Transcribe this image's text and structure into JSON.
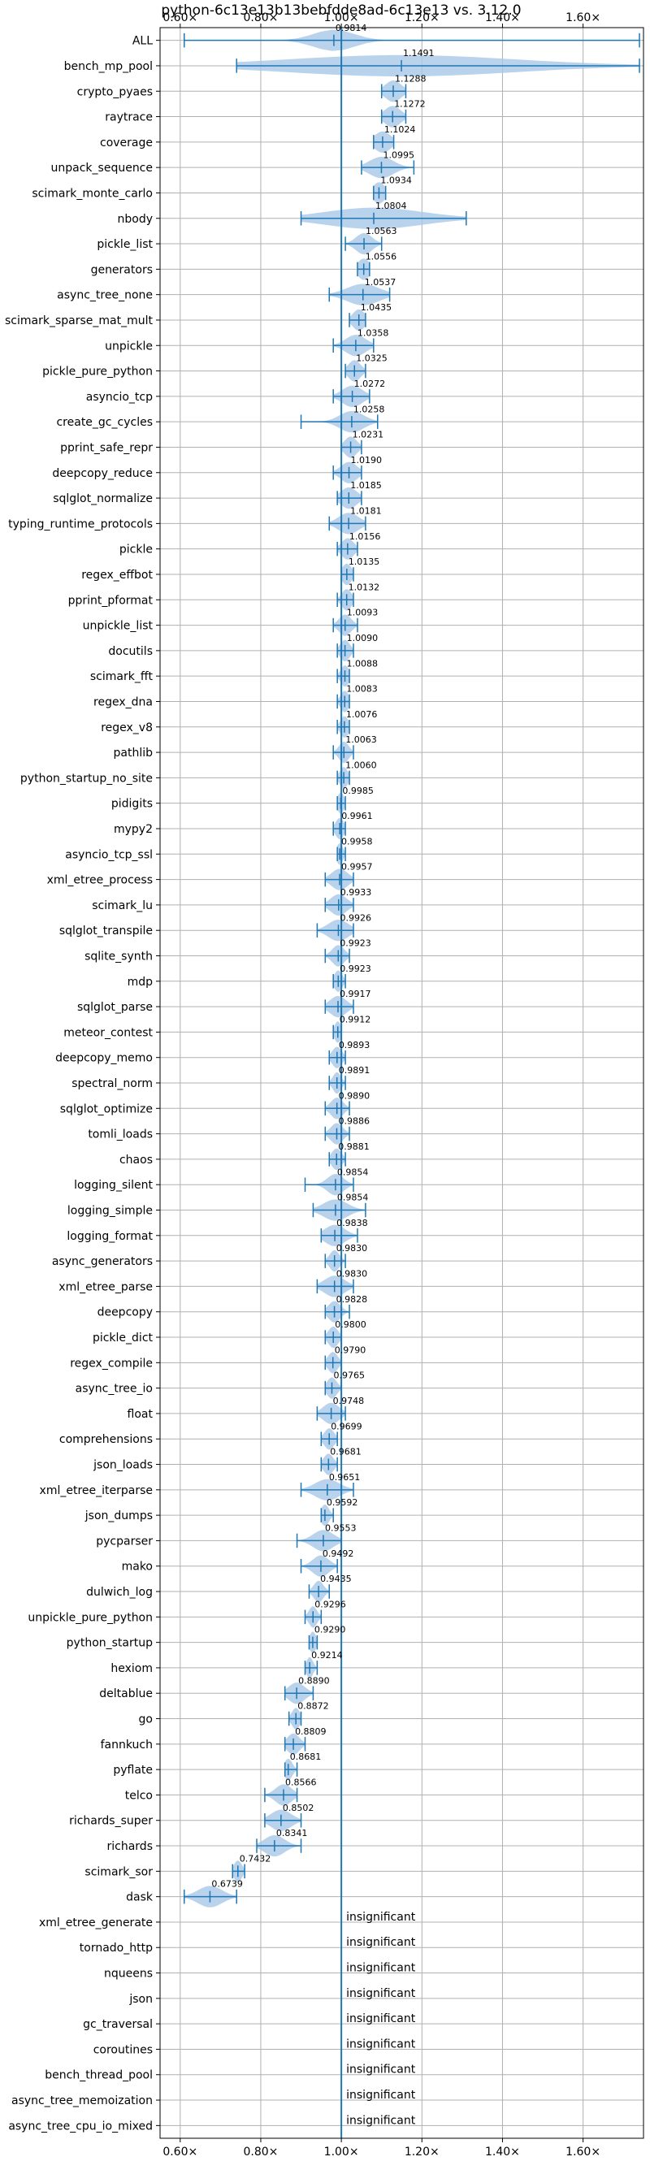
{
  "chart_data": {
    "type": "violin",
    "title": "python-6c13e13b13bebfdde8ad-6c13e13 vs. 3.12.0",
    "xlim": [
      0.55,
      1.75
    ],
    "x_ticks": [
      0.6,
      0.8,
      1.0,
      1.2,
      1.4,
      1.6
    ],
    "x_tick_labels": [
      "0.60×",
      "0.80×",
      "1.00×",
      "1.20×",
      "1.40×",
      "1.60×"
    ],
    "reference_line": 1.0,
    "grid": true,
    "colors": {
      "violin": "#a9c8e8",
      "whisker": "#1f77b4",
      "reference": "#1f77b4",
      "grid": "#b0b0b0"
    },
    "benchmarks": [
      {
        "name": "ALL",
        "value": "0.9814",
        "median": 0.9814,
        "min": 0.61,
        "max": 1.74,
        "spread": 0.05
      },
      {
        "name": "bench_mp_pool",
        "value": "1.1491",
        "median": 1.1491,
        "min": 0.74,
        "max": 1.74,
        "spread": 0.28
      },
      {
        "name": "crypto_pyaes",
        "value": "1.1288",
        "median": 1.1288,
        "min": 1.1,
        "max": 1.16,
        "spread": 0.02
      },
      {
        "name": "raytrace",
        "value": "1.1272",
        "median": 1.1272,
        "min": 1.1,
        "max": 1.16,
        "spread": 0.02
      },
      {
        "name": "coverage",
        "value": "1.1024",
        "median": 1.1024,
        "min": 1.08,
        "max": 1.13,
        "spread": 0.02
      },
      {
        "name": "unpack_sequence",
        "value": "1.0995",
        "median": 1.0995,
        "min": 1.05,
        "max": 1.18,
        "spread": 0.03
      },
      {
        "name": "scimark_monte_carlo",
        "value": "1.0934",
        "median": 1.0934,
        "min": 1.08,
        "max": 1.11,
        "spread": 0.015
      },
      {
        "name": "nbody",
        "value": "1.0804",
        "median": 1.0804,
        "min": 0.9,
        "max": 1.31,
        "spread": 0.12
      },
      {
        "name": "pickle_list",
        "value": "1.0563",
        "median": 1.0563,
        "min": 1.01,
        "max": 1.1,
        "spread": 0.02
      },
      {
        "name": "generators",
        "value": "1.0556",
        "median": 1.0556,
        "min": 1.04,
        "max": 1.07,
        "spread": 0.015
      },
      {
        "name": "async_tree_none",
        "value": "1.0537",
        "median": 1.0537,
        "min": 0.97,
        "max": 1.12,
        "spread": 0.04
      },
      {
        "name": "scimark_sparse_mat_mult",
        "value": "1.0435",
        "median": 1.0435,
        "min": 1.02,
        "max": 1.06,
        "spread": 0.015
      },
      {
        "name": "unpickle",
        "value": "1.0358",
        "median": 1.0358,
        "min": 0.98,
        "max": 1.08,
        "spread": 0.025
      },
      {
        "name": "pickle_pure_python",
        "value": "1.0325",
        "median": 1.0325,
        "min": 1.01,
        "max": 1.06,
        "spread": 0.015
      },
      {
        "name": "asyncio_tcp",
        "value": "1.0272",
        "median": 1.0272,
        "min": 0.98,
        "max": 1.07,
        "spread": 0.025
      },
      {
        "name": "create_gc_cycles",
        "value": "1.0258",
        "median": 1.0258,
        "min": 0.9,
        "max": 1.09,
        "spread": 0.03
      },
      {
        "name": "pprint_safe_repr",
        "value": "1.0231",
        "median": 1.0231,
        "min": 1.0,
        "max": 1.05,
        "spread": 0.015
      },
      {
        "name": "deepcopy_reduce",
        "value": "1.0190",
        "median": 1.019,
        "min": 0.98,
        "max": 1.05,
        "spread": 0.02
      },
      {
        "name": "sqlglot_normalize",
        "value": "1.0185",
        "median": 1.0185,
        "min": 0.99,
        "max": 1.05,
        "spread": 0.02
      },
      {
        "name": "typing_runtime_protocols",
        "value": "1.0181",
        "median": 1.0181,
        "min": 0.97,
        "max": 1.06,
        "spread": 0.025
      },
      {
        "name": "pickle",
        "value": "1.0156",
        "median": 1.0156,
        "min": 0.99,
        "max": 1.04,
        "spread": 0.015
      },
      {
        "name": "regex_effbot",
        "value": "1.0135",
        "median": 1.0135,
        "min": 1.0,
        "max": 1.03,
        "spread": 0.012
      },
      {
        "name": "pprint_pformat",
        "value": "1.0132",
        "median": 1.0132,
        "min": 0.99,
        "max": 1.03,
        "spread": 0.012
      },
      {
        "name": "unpickle_list",
        "value": "1.0093",
        "median": 1.0093,
        "min": 0.98,
        "max": 1.04,
        "spread": 0.015
      },
      {
        "name": "docutils",
        "value": "1.0090",
        "median": 1.009,
        "min": 0.99,
        "max": 1.03,
        "spread": 0.012
      },
      {
        "name": "scimark_fft",
        "value": "1.0088",
        "median": 1.0088,
        "min": 0.99,
        "max": 1.02,
        "spread": 0.01
      },
      {
        "name": "regex_dna",
        "value": "1.0083",
        "median": 1.0083,
        "min": 0.99,
        "max": 1.02,
        "spread": 0.01
      },
      {
        "name": "regex_v8",
        "value": "1.0076",
        "median": 1.0076,
        "min": 0.99,
        "max": 1.02,
        "spread": 0.01
      },
      {
        "name": "pathlib",
        "value": "1.0063",
        "median": 1.0063,
        "min": 0.98,
        "max": 1.03,
        "spread": 0.012
      },
      {
        "name": "python_startup_no_site",
        "value": "1.0060",
        "median": 1.006,
        "min": 0.99,
        "max": 1.02,
        "spread": 0.01
      },
      {
        "name": "pidigits",
        "value": "0.9985",
        "median": 0.9985,
        "min": 0.99,
        "max": 1.01,
        "spread": 0.008
      },
      {
        "name": "mypy2",
        "value": "0.9961",
        "median": 0.9961,
        "min": 0.98,
        "max": 1.01,
        "spread": 0.01
      },
      {
        "name": "asyncio_tcp_ssl",
        "value": "0.9958",
        "median": 0.9958,
        "min": 0.99,
        "max": 1.01,
        "spread": 0.008
      },
      {
        "name": "xml_etree_process",
        "value": "0.9957",
        "median": 0.9957,
        "min": 0.96,
        "max": 1.03,
        "spread": 0.02
      },
      {
        "name": "scimark_lu",
        "value": "0.9933",
        "median": 0.9933,
        "min": 0.96,
        "max": 1.03,
        "spread": 0.02
      },
      {
        "name": "sqlglot_transpile",
        "value": "0.9926",
        "median": 0.9926,
        "min": 0.94,
        "max": 1.03,
        "spread": 0.025
      },
      {
        "name": "sqlite_synth",
        "value": "0.9923",
        "median": 0.9923,
        "min": 0.96,
        "max": 1.02,
        "spread": 0.015
      },
      {
        "name": "mdp",
        "value": "0.9923",
        "median": 0.9923,
        "min": 0.98,
        "max": 1.01,
        "spread": 0.01
      },
      {
        "name": "sqlglot_parse",
        "value": "0.9917",
        "median": 0.9917,
        "min": 0.96,
        "max": 1.03,
        "spread": 0.02
      },
      {
        "name": "meteor_contest",
        "value": "0.9912",
        "median": 0.9912,
        "min": 0.98,
        "max": 1.0,
        "spread": 0.008
      },
      {
        "name": "deepcopy_memo",
        "value": "0.9893",
        "median": 0.9893,
        "min": 0.97,
        "max": 1.01,
        "spread": 0.012
      },
      {
        "name": "spectral_norm",
        "value": "0.9891",
        "median": 0.9891,
        "min": 0.97,
        "max": 1.01,
        "spread": 0.01
      },
      {
        "name": "sqlglot_optimize",
        "value": "0.9890",
        "median": 0.989,
        "min": 0.96,
        "max": 1.02,
        "spread": 0.015
      },
      {
        "name": "tomli_loads",
        "value": "0.9886",
        "median": 0.9886,
        "min": 0.96,
        "max": 1.02,
        "spread": 0.015
      },
      {
        "name": "chaos",
        "value": "0.9881",
        "median": 0.9881,
        "min": 0.97,
        "max": 1.01,
        "spread": 0.012
      },
      {
        "name": "logging_silent",
        "value": "0.9854",
        "median": 0.9854,
        "min": 0.91,
        "max": 1.03,
        "spread": 0.02
      },
      {
        "name": "logging_simple",
        "value": "0.9854",
        "median": 0.9854,
        "min": 0.93,
        "max": 1.06,
        "spread": 0.03
      },
      {
        "name": "logging_format",
        "value": "0.9838",
        "median": 0.9838,
        "min": 0.95,
        "max": 1.04,
        "spread": 0.025
      },
      {
        "name": "async_generators",
        "value": "0.9830",
        "median": 0.983,
        "min": 0.96,
        "max": 1.01,
        "spread": 0.012
      },
      {
        "name": "xml_etree_parse",
        "value": "0.9830",
        "median": 0.983,
        "min": 0.94,
        "max": 1.03,
        "spread": 0.025
      },
      {
        "name": "deepcopy",
        "value": "0.9828",
        "median": 0.9828,
        "min": 0.96,
        "max": 1.02,
        "spread": 0.015
      },
      {
        "name": "pickle_dict",
        "value": "0.9800",
        "median": 0.98,
        "min": 0.96,
        "max": 1.0,
        "spread": 0.012
      },
      {
        "name": "regex_compile",
        "value": "0.9790",
        "median": 0.979,
        "min": 0.96,
        "max": 1.0,
        "spread": 0.012
      },
      {
        "name": "async_tree_io",
        "value": "0.9765",
        "median": 0.9765,
        "min": 0.96,
        "max": 1.0,
        "spread": 0.012
      },
      {
        "name": "float",
        "value": "0.9748",
        "median": 0.9748,
        "min": 0.94,
        "max": 1.01,
        "spread": 0.02
      },
      {
        "name": "comprehensions",
        "value": "0.9699",
        "median": 0.9699,
        "min": 0.95,
        "max": 0.99,
        "spread": 0.012
      },
      {
        "name": "json_loads",
        "value": "0.9681",
        "median": 0.9681,
        "min": 0.95,
        "max": 0.99,
        "spread": 0.012
      },
      {
        "name": "xml_etree_iterparse",
        "value": "0.9651",
        "median": 0.9651,
        "min": 0.9,
        "max": 1.03,
        "spread": 0.03
      },
      {
        "name": "json_dumps",
        "value": "0.9592",
        "median": 0.9592,
        "min": 0.95,
        "max": 0.98,
        "spread": 0.01
      },
      {
        "name": "pycparser",
        "value": "0.9553",
        "median": 0.9553,
        "min": 0.89,
        "max": 1.0,
        "spread": 0.025
      },
      {
        "name": "mako",
        "value": "0.9492",
        "median": 0.9492,
        "min": 0.9,
        "max": 0.99,
        "spread": 0.02
      },
      {
        "name": "dulwich_log",
        "value": "0.9435",
        "median": 0.9435,
        "min": 0.92,
        "max": 0.97,
        "spread": 0.012
      },
      {
        "name": "unpickle_pure_python",
        "value": "0.9296",
        "median": 0.9296,
        "min": 0.91,
        "max": 0.95,
        "spread": 0.01
      },
      {
        "name": "python_startup",
        "value": "0.9290",
        "median": 0.929,
        "min": 0.92,
        "max": 0.94,
        "spread": 0.008
      },
      {
        "name": "hexiom",
        "value": "0.9214",
        "median": 0.9214,
        "min": 0.91,
        "max": 0.94,
        "spread": 0.008
      },
      {
        "name": "deltablue",
        "value": "0.8890",
        "median": 0.889,
        "min": 0.86,
        "max": 0.93,
        "spread": 0.02
      },
      {
        "name": "go",
        "value": "0.8872",
        "median": 0.8872,
        "min": 0.87,
        "max": 0.9,
        "spread": 0.01
      },
      {
        "name": "fannkuch",
        "value": "0.8809",
        "median": 0.8809,
        "min": 0.86,
        "max": 0.91,
        "spread": 0.015
      },
      {
        "name": "pyflate",
        "value": "0.8681",
        "median": 0.8681,
        "min": 0.86,
        "max": 0.89,
        "spread": 0.01
      },
      {
        "name": "telco",
        "value": "0.8566",
        "median": 0.8566,
        "min": 0.81,
        "max": 0.89,
        "spread": 0.02
      },
      {
        "name": "richards_super",
        "value": "0.8502",
        "median": 0.8502,
        "min": 0.81,
        "max": 0.9,
        "spread": 0.025
      },
      {
        "name": "richards",
        "value": "0.8341",
        "median": 0.8341,
        "min": 0.79,
        "max": 0.9,
        "spread": 0.025
      },
      {
        "name": "scimark_sor",
        "value": "0.7432",
        "median": 0.7432,
        "min": 0.73,
        "max": 0.76,
        "spread": 0.01
      },
      {
        "name": "dask",
        "value": "0.6739",
        "median": 0.6739,
        "min": 0.61,
        "max": 0.74,
        "spread": 0.03
      },
      {
        "name": "xml_etree_generate",
        "value": "insignificant",
        "insignificant": true
      },
      {
        "name": "tornado_http",
        "value": "insignificant",
        "insignificant": true
      },
      {
        "name": "nqueens",
        "value": "insignificant",
        "insignificant": true
      },
      {
        "name": "json",
        "value": "insignificant",
        "insignificant": true
      },
      {
        "name": "gc_traversal",
        "value": "insignificant",
        "insignificant": true
      },
      {
        "name": "coroutines",
        "value": "insignificant",
        "insignificant": true
      },
      {
        "name": "bench_thread_pool",
        "value": "insignificant",
        "insignificant": true
      },
      {
        "name": "async_tree_memoization",
        "value": "insignificant",
        "insignificant": true
      },
      {
        "name": "async_tree_cpu_io_mixed",
        "value": "insignificant",
        "insignificant": true
      }
    ]
  }
}
